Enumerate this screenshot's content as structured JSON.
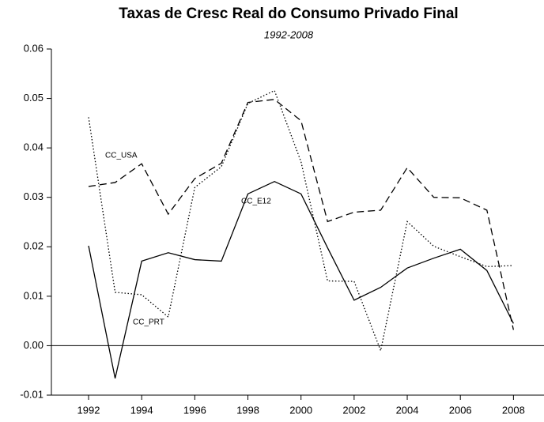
{
  "chart_data": {
    "type": "line",
    "title": "Taxas de Cresc Real do Consumo Privado Final",
    "subtitle": "1992-2008",
    "x": [
      1992,
      1993,
      1994,
      1995,
      1996,
      1997,
      1998,
      1999,
      2000,
      2001,
      2002,
      2003,
      2004,
      2005,
      2006,
      2007,
      2008
    ],
    "series": [
      {
        "name": "CC_E12",
        "color": "#000000",
        "dash": "solid",
        "values": [
          0.0202,
          -0.0066,
          0.0171,
          0.0188,
          0.0174,
          0.0171,
          0.0307,
          0.0332,
          0.0307,
          0.0198,
          0.0092,
          0.0118,
          0.0157,
          0.0177,
          0.0195,
          0.0152,
          0.0045
        ]
      },
      {
        "name": "CC_USA",
        "color": "#000000",
        "dash": "dashed",
        "values": [
          0.0322,
          0.033,
          0.0368,
          0.0266,
          0.0338,
          0.0369,
          0.0492,
          0.0498,
          0.0455,
          0.0251,
          0.027,
          0.0274,
          0.036,
          0.03,
          0.0299,
          0.0274,
          0.0032
        ]
      },
      {
        "name": "CC_PRT",
        "color": "#000000",
        "dash": "dotted",
        "values": [
          0.0462,
          0.0108,
          0.0103,
          0.0058,
          0.032,
          0.0362,
          0.049,
          0.0516,
          0.0372,
          0.0131,
          0.013,
          -0.001,
          0.0251,
          0.0201,
          0.018,
          0.016,
          0.0162
        ]
      }
    ],
    "xlim": [
      1990.6,
      2009.15
    ],
    "xticks": [
      1992,
      1994,
      1996,
      1998,
      2000,
      2002,
      2004,
      2006,
      2008
    ],
    "ylim": [
      -0.01,
      0.06
    ],
    "yticks": [
      {
        "value": -0.01,
        "label": "-0.01"
      },
      {
        "value": 0,
        "label": "0.00"
      },
      {
        "value": 0.01,
        "label": "0.01"
      },
      {
        "value": 0.02,
        "label": "0.02"
      },
      {
        "value": 0.03,
        "label": "0.03"
      },
      {
        "value": 0.04,
        "label": "0.04"
      },
      {
        "value": 0.05,
        "label": "0.05"
      },
      {
        "value": 0.06,
        "label": "0.06"
      }
    ],
    "legend": "inline",
    "grid": false
  }
}
